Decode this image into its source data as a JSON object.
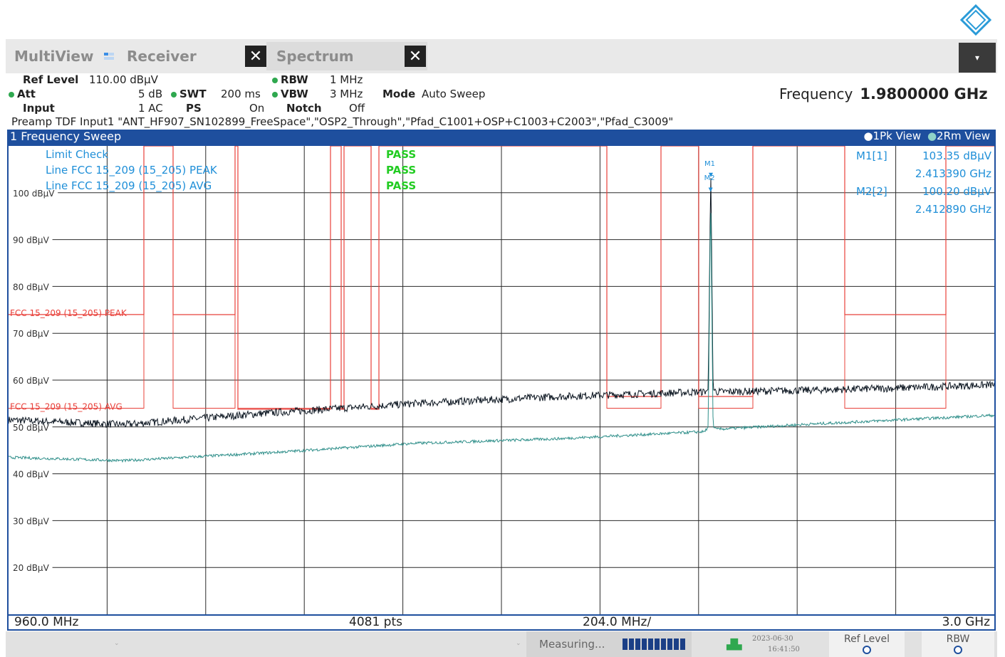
{
  "tabs": {
    "multiview": "MultiView",
    "receiver": "Receiver",
    "spectrum": "Spectrum",
    "close_glyph": "✕",
    "dropdown_glyph": "▾"
  },
  "settings": {
    "ref_level_label": "Ref Level",
    "ref_level_value": "110.00 dBµV",
    "att_label": "Att",
    "att_value": "5 dB",
    "input_label": "Input",
    "input_value": "1 AC",
    "swt_label": "SWT",
    "swt_value": "200 ms",
    "ps_label": "PS",
    "ps_value": "On",
    "rbw_label": "RBW",
    "rbw_value": "1 MHz",
    "vbw_label": "VBW",
    "vbw_value": "3 MHz",
    "notch_label": "Notch",
    "notch_value": "Off",
    "mode_label": "Mode",
    "mode_value": "Auto Sweep",
    "preamp_line": "Preamp TDF Input1 \"ANT_HF907_SN102899_FreeSpace\",\"OSP2_Through\",\"Pfad_C1001+OSP+C1003+C2003\",\"Pfad_C3009\"",
    "frequency_label": "Frequency",
    "frequency_value": "1.9800000 GHz"
  },
  "window": {
    "title": "1 Frequency Sweep",
    "view1": "1Pk View",
    "view2": "2Rm View"
  },
  "limit_check": {
    "title": "Limit Check",
    "lines": [
      {
        "name": "Line FCC 15_209 (15_205) PEAK",
        "result": "PASS"
      },
      {
        "name": "Line FCC 15_209 (15_205) AVG",
        "result": "PASS"
      }
    ],
    "title_result": "PASS"
  },
  "markers": [
    {
      "label": "M1",
      "id": "M1[1]",
      "level": "103.35 dBµV",
      "freq": "2.413390 GHz"
    },
    {
      "label": "M2",
      "id": "M2[2]",
      "level": "100.20 dBµV",
      "freq": "2.412890 GHz"
    }
  ],
  "limit_line_labels": {
    "peak": "FCC 15_209 (15_205) PEAK",
    "avg": "FCC 15_209 (15_205) AVG"
  },
  "scale": {
    "start": "960.0 MHz",
    "points": "4081 pts",
    "span_per_div": "204.0 MHz/",
    "stop": "3.0 GHz"
  },
  "status": {
    "measuring": "Measuring...",
    "date": "2023-06-30",
    "time": "16:41:50",
    "ref_level_btn": "Ref Level",
    "rbw_btn": "RBW"
  },
  "colors": {
    "accent": "#1e4f9e",
    "limit": "#e8403a",
    "pass": "#22cc22",
    "marker": "#1f8fd8",
    "trace_peak": "#0b1520",
    "trace_avg": "#2f8f8a"
  },
  "chart_data": {
    "type": "line",
    "title": "1 Frequency Sweep",
    "xlabel": "",
    "ylabel": "",
    "x_range_mhz": [
      960,
      3000
    ],
    "ylim": [
      10,
      110
    ],
    "y_ticks": [
      "100 dBµV",
      "90 dBµV",
      "80 dBµV",
      "70 dBµV",
      "60 dBµV",
      "50 dBµV",
      "40 dBµV",
      "30 dBµV",
      "20 dBµV"
    ],
    "grid": true,
    "series": [
      {
        "name": "1Pk View",
        "x": [
          960,
          1200,
          1500,
          1800,
          2100,
          2400,
          2408,
          2412,
          2413.39,
          2418,
          2425,
          2600,
          2800,
          3000
        ],
        "values": [
          51.5,
          50.5,
          53,
          55,
          56.5,
          57.5,
          58,
          95,
          103.35,
          58,
          57.5,
          57.8,
          58.3,
          59
        ]
      },
      {
        "name": "2Rm View",
        "x": [
          960,
          1200,
          1500,
          1800,
          2100,
          2400,
          2408,
          2412.89,
          2418,
          2425,
          2600,
          2800,
          3000
        ],
        "values": [
          43.5,
          42.8,
          44.5,
          46.5,
          47.5,
          49,
          50,
          100.2,
          50,
          49.5,
          50.5,
          51.5,
          52.5
        ]
      }
    ],
    "limit_lines": [
      {
        "name": "FCC 15_209 (15_205) PEAK",
        "level_dbuv": 74
      },
      {
        "name": "FCC 15_209 (15_205) AVG",
        "level_dbuv": 54
      }
    ]
  }
}
